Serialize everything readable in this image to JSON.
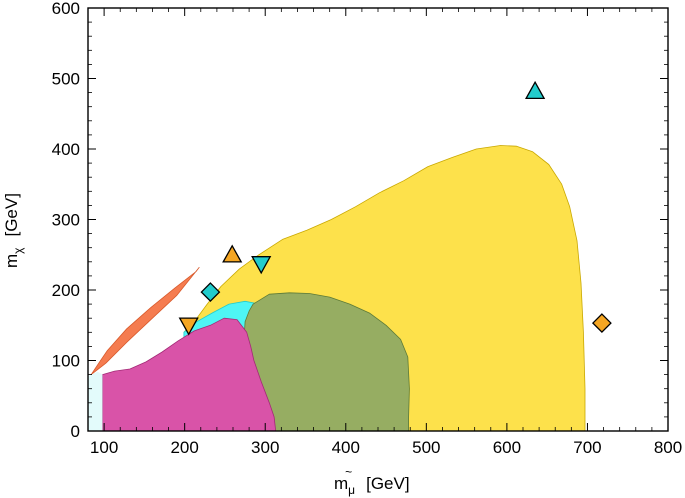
{
  "chart_data": {
    "type": "scatter",
    "title": "",
    "xlabel": {
      "main": "m",
      "sub": "μ",
      "tilde": "~",
      "unit": "[GeV]"
    },
    "ylabel": {
      "main": "m",
      "sub": "χ",
      "unit": "[GeV]"
    },
    "xlim": [
      80,
      800
    ],
    "ylim": [
      0,
      600
    ],
    "xticks": [
      100,
      200,
      300,
      400,
      500,
      600,
      700,
      800
    ],
    "yticks": [
      0,
      100,
      200,
      300,
      400,
      500,
      600
    ],
    "regions": [
      {
        "id": "yellow",
        "color": "#fde14b",
        "stroke": "#c9a800",
        "points": [
          [
            199,
            140
          ],
          [
            215,
            160
          ],
          [
            228,
            180
          ],
          [
            245,
            205
          ],
          [
            268,
            230
          ],
          [
            292,
            250
          ],
          [
            322,
            272
          ],
          [
            352,
            285
          ],
          [
            382,
            300
          ],
          [
            412,
            318
          ],
          [
            442,
            338
          ],
          [
            472,
            355
          ],
          [
            502,
            375
          ],
          [
            532,
            388
          ],
          [
            562,
            400
          ],
          [
            592,
            405
          ],
          [
            612,
            404
          ],
          [
            632,
            396
          ],
          [
            652,
            378
          ],
          [
            668,
            350
          ],
          [
            678,
            318
          ],
          [
            687,
            270
          ],
          [
            692,
            210
          ],
          [
            695,
            140
          ],
          [
            697,
            60
          ],
          [
            697,
            0
          ],
          [
            199,
            0
          ]
        ]
      },
      {
        "id": "cyan",
        "color": "#4ef5f5",
        "stroke": "#2cc",
        "points": [
          [
            199,
            140
          ],
          [
            215,
            155
          ],
          [
            235,
            168
          ],
          [
            255,
            180
          ],
          [
            275,
            184
          ],
          [
            293,
            180
          ],
          [
            305,
            170
          ],
          [
            308,
            150
          ],
          [
            307,
            130
          ],
          [
            308,
            110
          ],
          [
            310,
            80
          ],
          [
            313,
            55
          ],
          [
            318,
            30
          ],
          [
            325,
            10
          ],
          [
            328,
            0
          ],
          [
            199,
            0
          ]
        ]
      },
      {
        "id": "green",
        "color": "#96ad62",
        "stroke": "#5d7a36",
        "points": [
          [
            285,
            180
          ],
          [
            305,
            194
          ],
          [
            330,
            196
          ],
          [
            355,
            195
          ],
          [
            380,
            190
          ],
          [
            405,
            180
          ],
          [
            430,
            167
          ],
          [
            450,
            150
          ],
          [
            468,
            130
          ],
          [
            477,
            105
          ],
          [
            479,
            60
          ],
          [
            478,
            20
          ],
          [
            478,
            0
          ],
          [
            282,
            0
          ],
          [
            281,
            20
          ],
          [
            277,
            40
          ],
          [
            274,
            60
          ],
          [
            275,
            90
          ],
          [
            273,
            120
          ],
          [
            275,
            155
          ],
          [
            280,
            170
          ]
        ]
      },
      {
        "id": "magenta",
        "color": "#d953a8",
        "stroke": "#a32a76",
        "points": [
          [
            98,
            0
          ],
          [
            98,
            80
          ],
          [
            113,
            85
          ],
          [
            132,
            88
          ],
          [
            152,
            98
          ],
          [
            172,
            112
          ],
          [
            192,
            128
          ],
          [
            212,
            142
          ],
          [
            232,
            150
          ],
          [
            249,
            160
          ],
          [
            265,
            158
          ],
          [
            277,
            140
          ],
          [
            282,
            120
          ],
          [
            286,
            100
          ],
          [
            295,
            70
          ],
          [
            305,
            40
          ],
          [
            311,
            20
          ],
          [
            313,
            0
          ]
        ]
      },
      {
        "id": "orange",
        "color": "#f57c50",
        "stroke": "#d85a2c",
        "points": [
          [
            84,
            80
          ],
          [
            102,
            96
          ],
          [
            130,
            128
          ],
          [
            160,
            160
          ],
          [
            190,
            192
          ],
          [
            218,
            232
          ],
          [
            214,
            226
          ],
          [
            188,
            203
          ],
          [
            158,
            175
          ],
          [
            128,
            145
          ],
          [
            104,
            114
          ],
          [
            92,
            94
          ]
        ]
      },
      {
        "id": "pale-cyan",
        "color": "#e3fbfb",
        "stroke": "none",
        "points": [
          [
            80,
            0
          ],
          [
            80,
            78
          ],
          [
            92,
            84
          ],
          [
            98,
            80
          ],
          [
            98,
            0
          ]
        ]
      }
    ],
    "markers": [
      {
        "shape": "triangle-up",
        "x": 635,
        "y": 482,
        "color": "#22cccc"
      },
      {
        "shape": "triangle-up",
        "x": 259,
        "y": 250,
        "color": "#f5a623"
      },
      {
        "shape": "triangle-down",
        "x": 295,
        "y": 237,
        "color": "#22cccc"
      },
      {
        "shape": "diamond",
        "x": 232,
        "y": 197,
        "color": "#22cccc"
      },
      {
        "shape": "triangle-down",
        "x": 205,
        "y": 150,
        "color": "#f5a623"
      },
      {
        "shape": "diamond",
        "x": 718,
        "y": 153,
        "color": "#f5a623"
      }
    ]
  }
}
